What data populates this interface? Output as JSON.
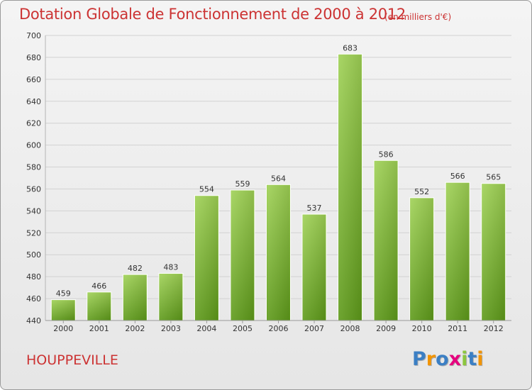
{
  "title": "Dotation Globale de Fonctionnement de 2000 à 2012",
  "subtitle": "(en milliers d'€)",
  "place": "HOUPPEVILLE",
  "logo": {
    "text": "Proxiti",
    "letter_colors": [
      "#3b7fc4",
      "#f29400",
      "#3b7fc4",
      "#e5007e",
      "#8cc63f",
      "#3b7fc4",
      "#f29400"
    ]
  },
  "colors": {
    "bar_top": "#9fd155",
    "bar_bottom": "#5e9a1a",
    "title": "#cc3333",
    "grid": "#d2d2d2"
  },
  "chart_data": {
    "type": "bar",
    "title": "Dotation Globale de Fonctionnement de 2000 à 2012",
    "subtitle": "(en milliers d'€)",
    "categories": [
      "2000",
      "2001",
      "2002",
      "2003",
      "2004",
      "2005",
      "2006",
      "2007",
      "2008",
      "2009",
      "2010",
      "2011",
      "2012"
    ],
    "values": [
      459,
      466,
      482,
      483,
      554,
      559,
      564,
      537,
      683,
      586,
      552,
      566,
      565
    ],
    "data_labels": [
      "459",
      "466",
      "482",
      "483",
      "554",
      "559",
      "564",
      "537",
      "683",
      "586",
      "552",
      "566",
      "565"
    ],
    "yticks": [
      "440",
      "460",
      "480",
      "500",
      "520",
      "540",
      "560",
      "580",
      "600",
      "620",
      "640",
      "660",
      "680",
      "700"
    ],
    "ylim": [
      440,
      700
    ],
    "ystep": 20,
    "grid": true,
    "xlabel": "",
    "ylabel": ""
  }
}
